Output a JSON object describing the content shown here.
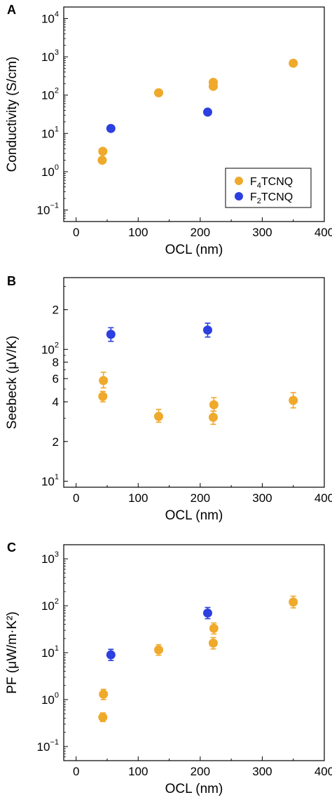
{
  "colors": {
    "f4tcnq": "#EFA92B",
    "f2tcnq": "#2C3FE0"
  },
  "chart_data": [
    {
      "panel": "A",
      "type": "scatter",
      "xlabel": "OCL (nm)",
      "ylabel": "Conductivity (S/cm)",
      "xlim": [
        -20,
        400
      ],
      "xticks": [
        0,
        100,
        200,
        300,
        400
      ],
      "xtick_labels": [
        "0",
        "100",
        "200",
        "300",
        "400"
      ],
      "ylim": [
        0.05,
        20000
      ],
      "yscale": "log",
      "yticks": [
        0.1,
        1,
        10,
        100,
        1000,
        10000
      ],
      "ytick_labels": [
        {
          "base": "10",
          "exp": "−1"
        },
        {
          "base": "10",
          "exp": "0"
        },
        {
          "base": "10",
          "exp": "1"
        },
        {
          "base": "10",
          "exp": "2"
        },
        {
          "base": "10",
          "exp": "3"
        },
        {
          "base": "10",
          "exp": "4"
        }
      ],
      "legend": {
        "position": "bottom-right",
        "entries": [
          {
            "series": "F4TCNQ",
            "prefix": "F",
            "sub": "4",
            "suffix": "TCNQ"
          },
          {
            "series": "F2TCNQ",
            "prefix": "F",
            "sub": "2",
            "suffix": "TCNQ"
          }
        ]
      },
      "series": [
        {
          "name": "F4TCNQ",
          "color_key": "f4tcnq",
          "points": [
            {
              "x": 42,
              "y": 2.0
            },
            {
              "x": 43,
              "y": 3.4
            },
            {
              "x": 133,
              "y": 115
            },
            {
              "x": 221,
              "y": 170
            },
            {
              "x": 221,
              "y": 215
            },
            {
              "x": 350,
              "y": 680
            }
          ]
        },
        {
          "name": "F2TCNQ",
          "color_key": "f2tcnq",
          "points": [
            {
              "x": 56,
              "y": 13.5
            },
            {
              "x": 212,
              "y": 36
            }
          ]
        }
      ]
    },
    {
      "panel": "B",
      "type": "scatter",
      "xlabel": "OCL (nm)",
      "ylabel": "Seebeck (μV/K)",
      "xlim": [
        -20,
        400
      ],
      "xticks": [
        0,
        100,
        200,
        300,
        400
      ],
      "xtick_labels": [
        "0",
        "100",
        "200",
        "300",
        "400"
      ],
      "ylim": [
        9,
        350
      ],
      "yscale": "log",
      "yticks": [
        10,
        20,
        40,
        60,
        80,
        100,
        200
      ],
      "ytick_labels": [
        {
          "base": "10",
          "exp": "1"
        },
        {
          "base": "2",
          "exp": ""
        },
        {
          "base": "4",
          "exp": ""
        },
        {
          "base": "6",
          "exp": ""
        },
        {
          "base": "8",
          "exp": ""
        },
        {
          "base": "10",
          "exp": "2"
        },
        {
          "base": "2",
          "exp": ""
        }
      ],
      "series": [
        {
          "name": "F4TCNQ",
          "color_key": "f4tcnq",
          "points": [
            {
              "x": 43,
              "y": 44,
              "ylo": 40,
              "yhi": 48
            },
            {
              "x": 44,
              "y": 58,
              "ylo": 51,
              "yhi": 67
            },
            {
              "x": 133,
              "y": 31,
              "ylo": 28,
              "yhi": 35
            },
            {
              "x": 221,
              "y": 30.5,
              "ylo": 27,
              "yhi": 34
            },
            {
              "x": 222,
              "y": 38,
              "ylo": 34,
              "yhi": 43
            },
            {
              "x": 350,
              "y": 41,
              "ylo": 36,
              "yhi": 47
            }
          ]
        },
        {
          "name": "F2TCNQ",
          "color_key": "f2tcnq",
          "points": [
            {
              "x": 56,
              "y": 130,
              "ylo": 115,
              "yhi": 146
            },
            {
              "x": 212,
              "y": 140,
              "ylo": 124,
              "yhi": 158
            }
          ]
        }
      ]
    },
    {
      "panel": "C",
      "type": "scatter",
      "xlabel": "OCL (nm)",
      "ylabel": "PF (μW/m·K²)",
      "xlim": [
        -20,
        400
      ],
      "xticks": [
        0,
        100,
        200,
        300,
        400
      ],
      "xtick_labels": [
        "0",
        "100",
        "200",
        "300",
        "400"
      ],
      "ylim": [
        0.05,
        2000
      ],
      "yscale": "log",
      "yticks": [
        0.1,
        1,
        10,
        100,
        1000
      ],
      "ytick_labels": [
        {
          "base": "10",
          "exp": "−1"
        },
        {
          "base": "10",
          "exp": "0"
        },
        {
          "base": "10",
          "exp": "1"
        },
        {
          "base": "10",
          "exp": "2"
        },
        {
          "base": "10",
          "exp": "3"
        }
      ],
      "series": [
        {
          "name": "F4TCNQ",
          "color_key": "f4tcnq",
          "points": [
            {
              "x": 43,
              "y": 0.42,
              "ylo": 0.34,
              "yhi": 0.52
            },
            {
              "x": 44,
              "y": 1.3,
              "ylo": 1.0,
              "yhi": 1.65
            },
            {
              "x": 133,
              "y": 11.5,
              "ylo": 8.8,
              "yhi": 14.8
            },
            {
              "x": 221,
              "y": 16,
              "ylo": 12,
              "yhi": 21
            },
            {
              "x": 222,
              "y": 33,
              "ylo": 25,
              "yhi": 43
            },
            {
              "x": 350,
              "y": 120,
              "ylo": 90,
              "yhi": 160
            }
          ]
        },
        {
          "name": "F2TCNQ",
          "color_key": "f2tcnq",
          "points": [
            {
              "x": 56,
              "y": 9,
              "ylo": 6.8,
              "yhi": 11.8
            },
            {
              "x": 212,
              "y": 70,
              "ylo": 53,
              "yhi": 92
            }
          ]
        }
      ]
    }
  ]
}
